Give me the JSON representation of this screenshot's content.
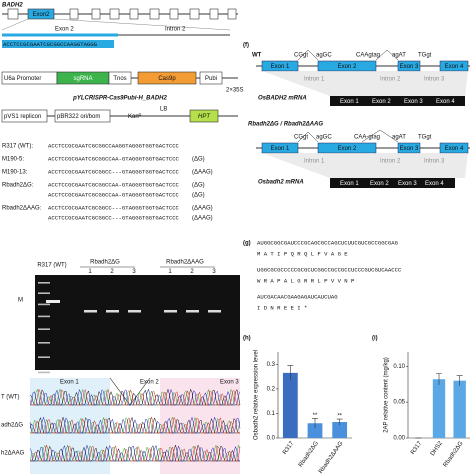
{
  "panel_e": {
    "gene": "BADH2",
    "exon_box": "Exon2",
    "exon": "Exon 2",
    "intron": "Intron 2",
    "target": "ACCTCCGCGAATCGCGGCCAAGGTAGGG",
    "construct": {
      "u6a": "U6a Promoter",
      "sgrna": "sgRNA",
      "tnos": "Tnos",
      "cas9": "Cas9p",
      "pubi": "Pubi",
      "s35": "2×35S",
      "name": "pYLCRISPR-Cas9Pubi-H_BADH2",
      "pvs1": "pVS1 replicon",
      "pbr": "pBR322 ori/bom",
      "kan": "Kanᴿ",
      "lb": "LB",
      "hpt": "HPT"
    }
  },
  "alignment": [
    {
      "label": "R317 (WT):",
      "lines": [
        {
          "seq": "ACCTCCGCGAATCGCGGCCAAGGTAGGGTGGTGACTCCC"
        }
      ]
    },
    {
      "label": "M190-5:",
      "lines": [
        {
          "seq": "ACCTCCGCGAATCGCGGCCAA-GTAGGGTGGTGACTCCC",
          "note": "(ΔG)"
        }
      ]
    },
    {
      "label": "M190-13:",
      "lines": [
        {
          "seq": "ACCTCCGCGAATCGCGGCC---GTAGGGTGGTGACTCCC",
          "note": "(ΔAAG)"
        }
      ]
    },
    {
      "label": "Rbadh2ΔG:",
      "lines": [
        {
          "seq": "ACCTCCGCGAATCGCGGCCAA-GTAGGGTGGTGACTCCC",
          "note": "(ΔG)"
        },
        {
          "seq": "ACCTCCGCGAATCGCGGCCAA-GTAGGGTGGTGACTCCC",
          "note": "(ΔG)"
        }
      ]
    },
    {
      "label": "Rbadh2ΔAAG:",
      "lines": [
        {
          "seq": "ACCTCCGCGAATCGCGGCC---GTAGGGTGGTGACTCCC",
          "note": "(ΔAAG)"
        },
        {
          "seq": "ACCTCCGCGAATCGCGGCC---GTAGGGTGGTGACTCCC",
          "note": "(ΔAAG)"
        }
      ]
    }
  ],
  "gel": {
    "marker": "M",
    "wt": "R317 (WT)",
    "groups": [
      {
        "name": "Rbadh2ΔG",
        "lanes": [
          "1",
          "2",
          "3"
        ]
      },
      {
        "name": "Rbadh2ΔAAG",
        "lanes": [
          "1",
          "2",
          "3"
        ]
      }
    ]
  },
  "chromatogram": {
    "exons": [
      "Exon 1",
      "Exon 2",
      "Exon 3"
    ],
    "tracks": [
      "T (WT)",
      "adh2ΔG",
      "h2ΔAAG"
    ]
  },
  "panel_f": {
    "label": "(f)",
    "wt": "WT",
    "mut": "Rbadh2ΔG / Rbadh2ΔAAG",
    "wt_sites": [
      "CGgt",
      "agGC",
      "CAAgtag",
      "agAT",
      "TGgt"
    ],
    "mut_site": "CAA-gtag",
    "exons": [
      "Exon 1",
      "Exon 2",
      "Exon 3",
      "Exon 4"
    ],
    "introns": [
      "Intron 1",
      "Intron 2",
      "Intron 3"
    ],
    "wt_mrna": "OsBADH2 mRNA",
    "mut_mrna": "Osbadh2 mRNA"
  },
  "panel_g": {
    "label": "(g)",
    "lines": [
      "AUGGCGGCGAUCCCGCAGCGCCAGCUCUUCGUCGCCGGCGAG",
      "M  A  T  I  P  Q  R  Q  L  F  V  A  G  E",
      "UGGCGCGCCCCCGCGCUCGGCCGCCGCCUCCCGUCGUCAACCC",
      "W  R  A  P  A  L  G  R  R  L  P  V  V  N  P",
      "AUCGACAACGAAGAGAUCAUCUAG",
      "I  D  N  R  E  E  I  *"
    ]
  },
  "chart_data": [
    {
      "type": "bar",
      "panel": "(h)",
      "y_label": "Osbadh2 relative expression level",
      "categories": [
        "R317",
        "Rbadh2ΔG",
        "Rbadh2ΔAAG"
      ],
      "values": [
        0.265,
        0.06,
        0.065
      ],
      "errors": [
        0.03,
        0.02,
        0.012
      ],
      "colors": [
        "#3a6cc0",
        "#4a90dc",
        "#4a90dc"
      ],
      "significance": [
        null,
        "**",
        "**"
      ],
      "ylim": [
        0,
        0.35
      ],
      "yticks": [
        {
          "value": 0,
          "label": "0.0"
        },
        0.1,
        0.2,
        0.3
      ]
    },
    {
      "type": "bar",
      "panel": "(i)",
      "y_label": "2AP relative content (mg/kg)",
      "categories": [
        "R317",
        "DHS2",
        "Rbadh2ΔG"
      ],
      "values": [
        0,
        0.082,
        0.08
      ],
      "errors": [
        0,
        0.008,
        0.007
      ],
      "colors": [
        "#5aa9e6",
        "#5aa9e6",
        "#5aa9e6"
      ],
      "ylim": [
        0,
        0.12
      ],
      "yticks": [
        {
          "value": 0,
          "label": "0.00"
        },
        0.05,
        {
          "value": 0.1,
          "label": "0.10"
        }
      ]
    }
  ]
}
